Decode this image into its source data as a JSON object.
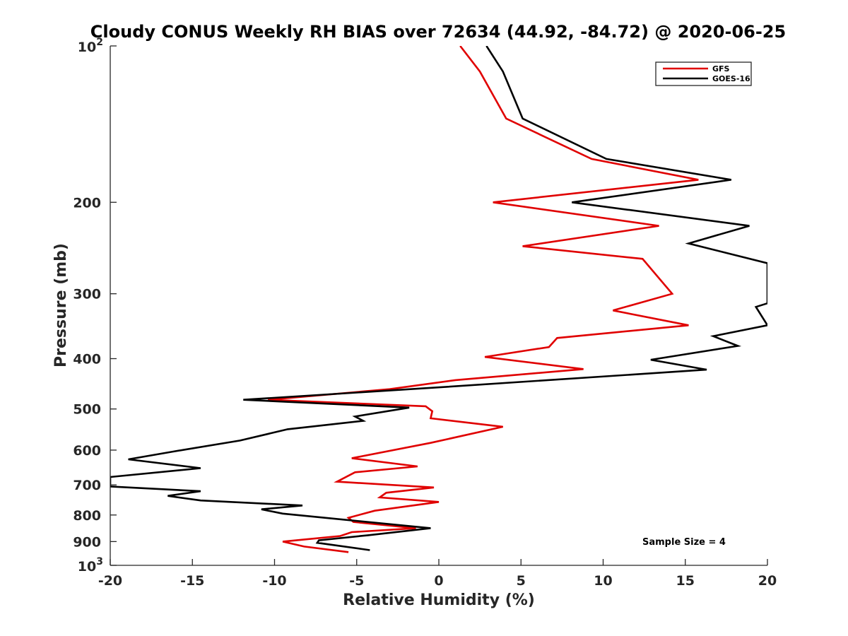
{
  "chart_data": {
    "type": "line",
    "title": "Cloudy CONUS Weekly RH BIAS over 72634 (44.92, -84.72) @ 2020-06-25",
    "xlabel": "Relative Humidity (%)",
    "ylabel": "Pressure (mb)",
    "xlim": [
      -20,
      20
    ],
    "ylim": [
      100,
      1000
    ],
    "y_scale": "log",
    "y_reversed": true,
    "grid": false,
    "legend_position": "top-right",
    "x_ticks": [
      "-20",
      "-15",
      "-10",
      "-5",
      "0",
      "5",
      "10",
      "15",
      "20"
    ],
    "y_ticks": [
      {
        "base": "10",
        "exp": "2"
      },
      {
        "label": "200"
      },
      {
        "label": "300"
      },
      {
        "label": "400"
      },
      {
        "label": "500"
      },
      {
        "label": "600"
      },
      {
        "label": "700"
      },
      {
        "label": "800"
      },
      {
        "label": "900"
      },
      {
        "base": "10",
        "exp": "3"
      }
    ],
    "series": [
      {
        "name": "GFS",
        "color": "#e00000",
        "x": [
          1.3,
          2.5,
          4.1,
          9.3,
          15.8,
          3.3,
          13.4,
          5.1,
          12.4,
          14.2,
          10.6,
          15.2,
          7.2,
          6.7,
          2.8,
          8.8,
          1.0,
          -3.0,
          -10.4,
          -0.8,
          -0.4,
          -0.5,
          3.9,
          -0.5,
          -5.3,
          -1.3,
          -5.1,
          -6.2,
          -0.3,
          -3.2,
          -3.6,
          0.0,
          -3.9,
          -5.5,
          -5.2,
          -1.4,
          -5.3,
          -6.0,
          -9.5,
          -8.2,
          -5.5
        ],
        "y": [
          100,
          112,
          138,
          165,
          181,
          200,
          222,
          243,
          257,
          300,
          323,
          345,
          365,
          380,
          397,
          419,
          440,
          458,
          480,
          494,
          505,
          521,
          541,
          581,
          622,
          645,
          662,
          690,
          708,
          725,
          740,
          755,
          785,
          810,
          825,
          848,
          863,
          878,
          900,
          920,
          943
        ]
      },
      {
        "name": "GOES-16",
        "color": "#000000",
        "x": [
          2.9,
          3.9,
          5.1,
          10.2,
          17.8,
          8.1,
          18.9,
          15.2,
          20.0,
          20.0,
          19.3,
          20.0,
          16.7,
          18.2,
          12.9,
          16.3,
          -0.3,
          -11.9,
          -1.8,
          -5.1,
          -4.6,
          -9.2,
          -12.1,
          -16.2,
          -18.9,
          -14.5,
          -20.0,
          -20.0,
          -14.5,
          -16.5,
          -14.5,
          -8.3,
          -10.8,
          -9.5,
          -0.5,
          -4.3,
          -7.3,
          -7.4,
          -4.2
        ],
        "y": [
          100,
          112,
          138,
          165,
          181,
          200,
          222,
          240,
          262,
          313,
          318,
          345,
          362,
          378,
          402,
          420,
          455,
          480,
          497,
          517,
          527,
          547,
          575,
          604,
          625,
          650,
          676,
          705,
          720,
          735,
          750,
          767,
          780,
          795,
          848,
          875,
          895,
          905,
          935
        ]
      }
    ],
    "annotation": "Sample Size = 4"
  }
}
